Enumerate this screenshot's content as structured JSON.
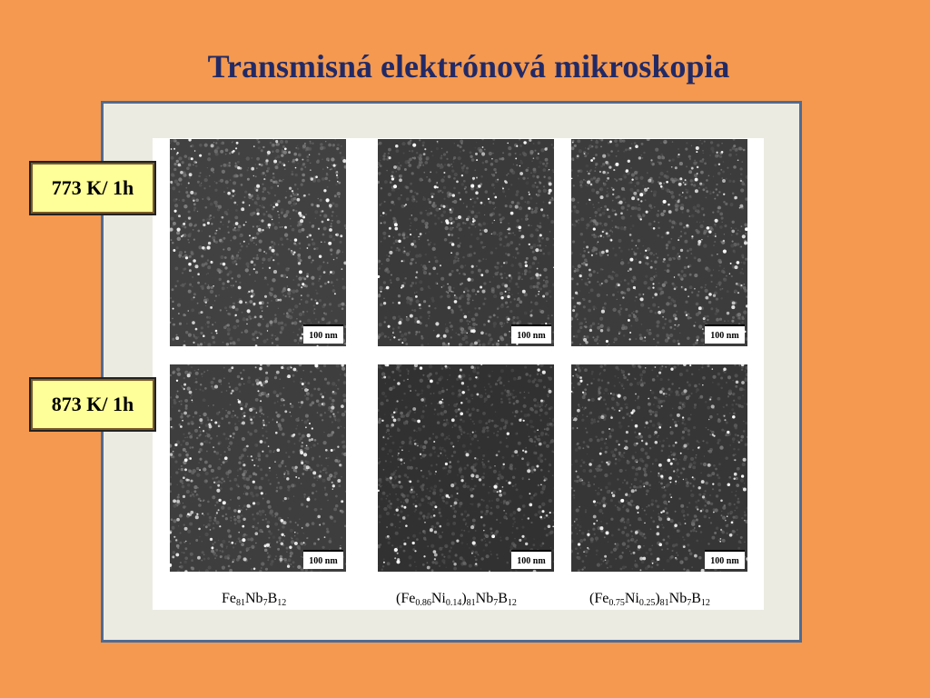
{
  "slide": {
    "title": "Transmisná elektrónová mikroskopia",
    "colors": {
      "background": "#f4994f",
      "title": "#222a66",
      "label_fill": "#ffff99",
      "frame_border": "#4f6b93"
    }
  },
  "rows": [
    {
      "label": "773 K/ 1h"
    },
    {
      "label": "873 K/ 1h"
    }
  ],
  "scale_bars": {
    "row1": [
      "100 nm",
      "100 nm",
      "100 nm"
    ],
    "row2": [
      "100 nm",
      "100 nm",
      "100 nm"
    ]
  },
  "columns": [
    {
      "caption_parts": [
        "Fe",
        "81",
        "Nb",
        "7",
        "B",
        "12"
      ]
    },
    {
      "caption_parts": [
        "(Fe",
        "0.86",
        "Ni",
        "0.14",
        ")",
        "81",
        "Nb",
        "7",
        "B",
        "12"
      ]
    },
    {
      "caption_parts": [
        "(Fe",
        "0.75",
        "Ni",
        "0.25",
        ")",
        "81",
        "Nb",
        "7",
        "B",
        "12"
      ]
    }
  ]
}
